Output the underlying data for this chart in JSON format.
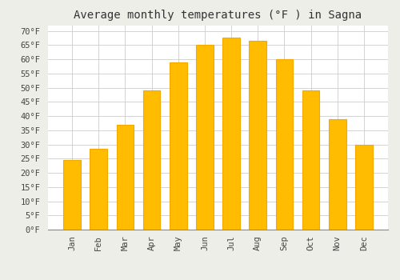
{
  "title": "Average monthly temperatures (°F ) in Sagna",
  "months": [
    "Jan",
    "Feb",
    "Mar",
    "Apr",
    "May",
    "Jun",
    "Jul",
    "Aug",
    "Sep",
    "Oct",
    "Nov",
    "Dec"
  ],
  "values": [
    24.5,
    28.5,
    37,
    49,
    59,
    65,
    67.5,
    66.5,
    60,
    49,
    39,
    30
  ],
  "bar_color": "#FFBC00",
  "bar_edge_color": "#F5A800",
  "background_color": "#EEEEE8",
  "plot_bg_color": "#FFFFFF",
  "grid_color": "#CCCCCC",
  "title_fontsize": 10,
  "tick_fontsize": 7.5,
  "ylim": [
    0,
    72
  ],
  "yticks": [
    0,
    5,
    10,
    15,
    20,
    25,
    30,
    35,
    40,
    45,
    50,
    55,
    60,
    65,
    70
  ]
}
